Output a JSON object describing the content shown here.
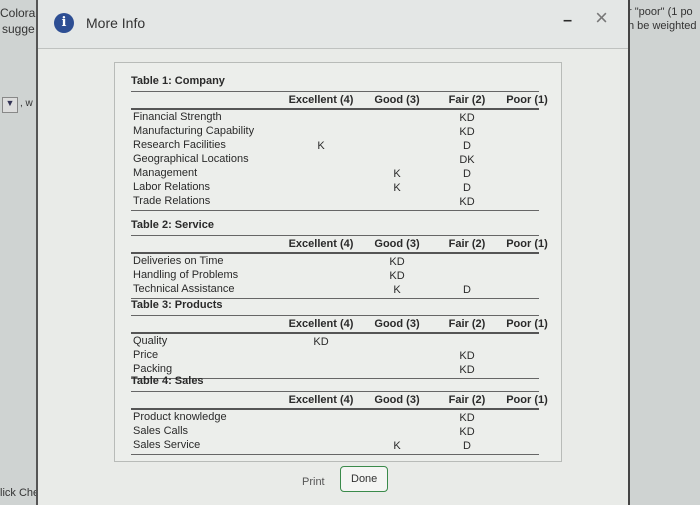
{
  "background": {
    "left_lines": [
      "Colora",
      "sugge"
    ],
    "left_dropdown_suffix": ", w",
    "left_bottom": "lick Check",
    "right_lines": [
      "r \"poor\" (1 po",
      "h be weighted"
    ]
  },
  "dialog": {
    "title": "More Info",
    "icons": {
      "info": "info-icon",
      "minimize": "minimize-icon",
      "close": "close-icon"
    },
    "buttons": {
      "print": "Print",
      "done": "Done"
    },
    "accent": "#2d4e93"
  },
  "tables": [
    {
      "title": "Table 1: Company",
      "columns": [
        "Excellent (4)",
        "Good (3)",
        "Fair (2)",
        "Poor (1)"
      ],
      "rows": [
        [
          "Financial Strength",
          "",
          "",
          "KD",
          ""
        ],
        [
          "Manufacturing Capability",
          "",
          "",
          "KD",
          ""
        ],
        [
          "Research Facilities",
          "K",
          "",
          "D",
          ""
        ],
        [
          "Geographical Locations",
          "",
          "",
          "DK",
          ""
        ],
        [
          "Management",
          "",
          "K",
          "D",
          ""
        ],
        [
          "Labor Relations",
          "",
          "K",
          "D",
          ""
        ],
        [
          "Trade Relations",
          "",
          "",
          "KD",
          ""
        ]
      ]
    },
    {
      "title": "Table 2: Service",
      "columns": [
        "Excellent (4)",
        "Good (3)",
        "Fair (2)",
        "Poor (1)"
      ],
      "rows": [
        [
          "Deliveries on Time",
          "",
          "KD",
          "",
          ""
        ],
        [
          "Handling of Problems",
          "",
          "KD",
          "",
          ""
        ],
        [
          "Technical Assistance",
          "",
          "K",
          "D",
          ""
        ]
      ]
    },
    {
      "title": "Table 3: Products",
      "columns": [
        "Excellent (4)",
        "Good (3)",
        "Fair (2)",
        "Poor (1)"
      ],
      "rows": [
        [
          "Quality",
          "KD",
          "",
          "",
          ""
        ],
        [
          "Price",
          "",
          "",
          "KD",
          ""
        ],
        [
          "Packing",
          "",
          "",
          "KD",
          ""
        ]
      ]
    },
    {
      "title": "Table 4: Sales",
      "columns": [
        "Excellent (4)",
        "Good (3)",
        "Fair (2)",
        "Poor (1)"
      ],
      "rows": [
        [
          "Product knowledge",
          "",
          "",
          "KD",
          ""
        ],
        [
          "Sales Calls",
          "",
          "",
          "KD",
          ""
        ],
        [
          "Sales Service",
          "",
          "K",
          "D",
          ""
        ]
      ]
    }
  ]
}
